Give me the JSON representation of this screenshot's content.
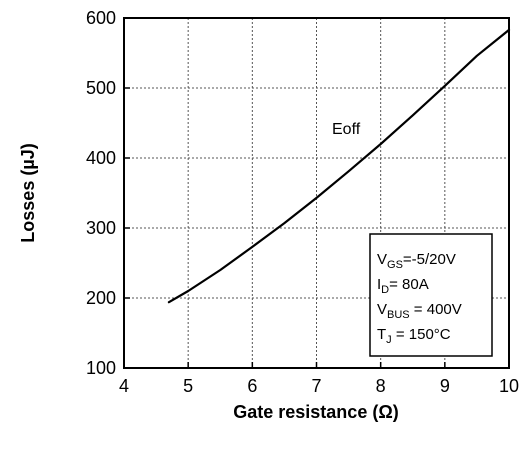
{
  "chart_data": {
    "type": "line",
    "xlabel": "Gate resistance (Ω)",
    "ylabel": "Losses (µJ)",
    "xlim": [
      4,
      10
    ],
    "ylim": [
      100,
      600
    ],
    "x_ticks": [
      4,
      5,
      6,
      7,
      8,
      9,
      10
    ],
    "y_ticks": [
      100,
      200,
      300,
      400,
      500,
      600
    ],
    "x_tick_labels": [
      "4",
      "5",
      "6",
      "7",
      "8",
      "9",
      "10"
    ],
    "y_tick_labels": [
      "100",
      "200",
      "300",
      "400",
      "500",
      "600"
    ],
    "grid": "dashed",
    "series": [
      {
        "name": "Eoff",
        "x": [
          4.7,
          5.0,
          5.5,
          6.0,
          6.5,
          7.0,
          7.5,
          8.0,
          8.5,
          9.0,
          9.5,
          10.0
        ],
        "y": [
          194,
          210,
          240,
          273,
          307,
          343,
          381,
          420,
          461,
          503,
          546,
          583
        ]
      }
    ],
    "annotation": "Eoff",
    "conditions": {
      "vgs": {
        "sym": "V",
        "sub": "GS",
        "val": "=-5/20V"
      },
      "id": {
        "sym": "I",
        "sub": "D",
        "val": "= 80A"
      },
      "vbus": {
        "sym": "V",
        "sub": "BUS",
        "val": " = 400V"
      },
      "tj": {
        "sym": "T",
        "sub": "J",
        "val": " = 150°C"
      }
    }
  }
}
